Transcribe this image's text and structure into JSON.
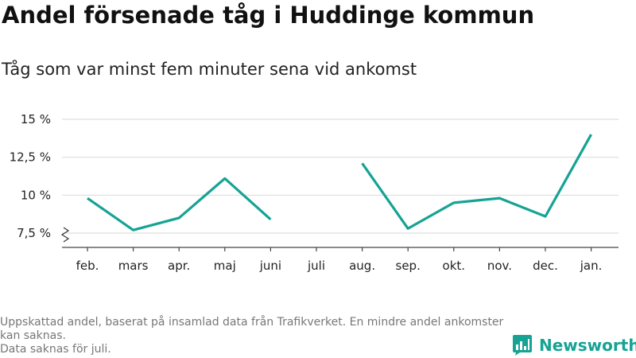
{
  "title": "Andel försenade tåg i Huddinge kommun",
  "subtitle": "Tåg som var minst fem minuter sena vid ankomst",
  "footnote": {
    "line1": "Uppskattad andel, baserat på insamlad data från Trafikverket. En mindre andel ankomster kan saknas.",
    "line2": "Data saknas för juli."
  },
  "brand": {
    "name": "Newsworthy",
    "color": "#16a394"
  },
  "chart_data": {
    "type": "line",
    "categories": [
      "feb.",
      "mars",
      "apr.",
      "maj",
      "juni",
      "juli",
      "aug.",
      "sep.",
      "okt.",
      "nov.",
      "dec.",
      "jan."
    ],
    "series": [
      {
        "color": "#16a394",
        "values": [
          9.8,
          7.7,
          8.5,
          11.1,
          8.4,
          null,
          12.1,
          7.8,
          9.5,
          9.8,
          8.6,
          14.0
        ]
      }
    ],
    "yticks": [
      7.5,
      10,
      12.5,
      15
    ],
    "ytick_labels": [
      "7,5 %",
      "10 %",
      "12,5 %",
      "15 %"
    ],
    "ylim": [
      7.5,
      15
    ],
    "y_axis_break": true,
    "grid": true
  }
}
